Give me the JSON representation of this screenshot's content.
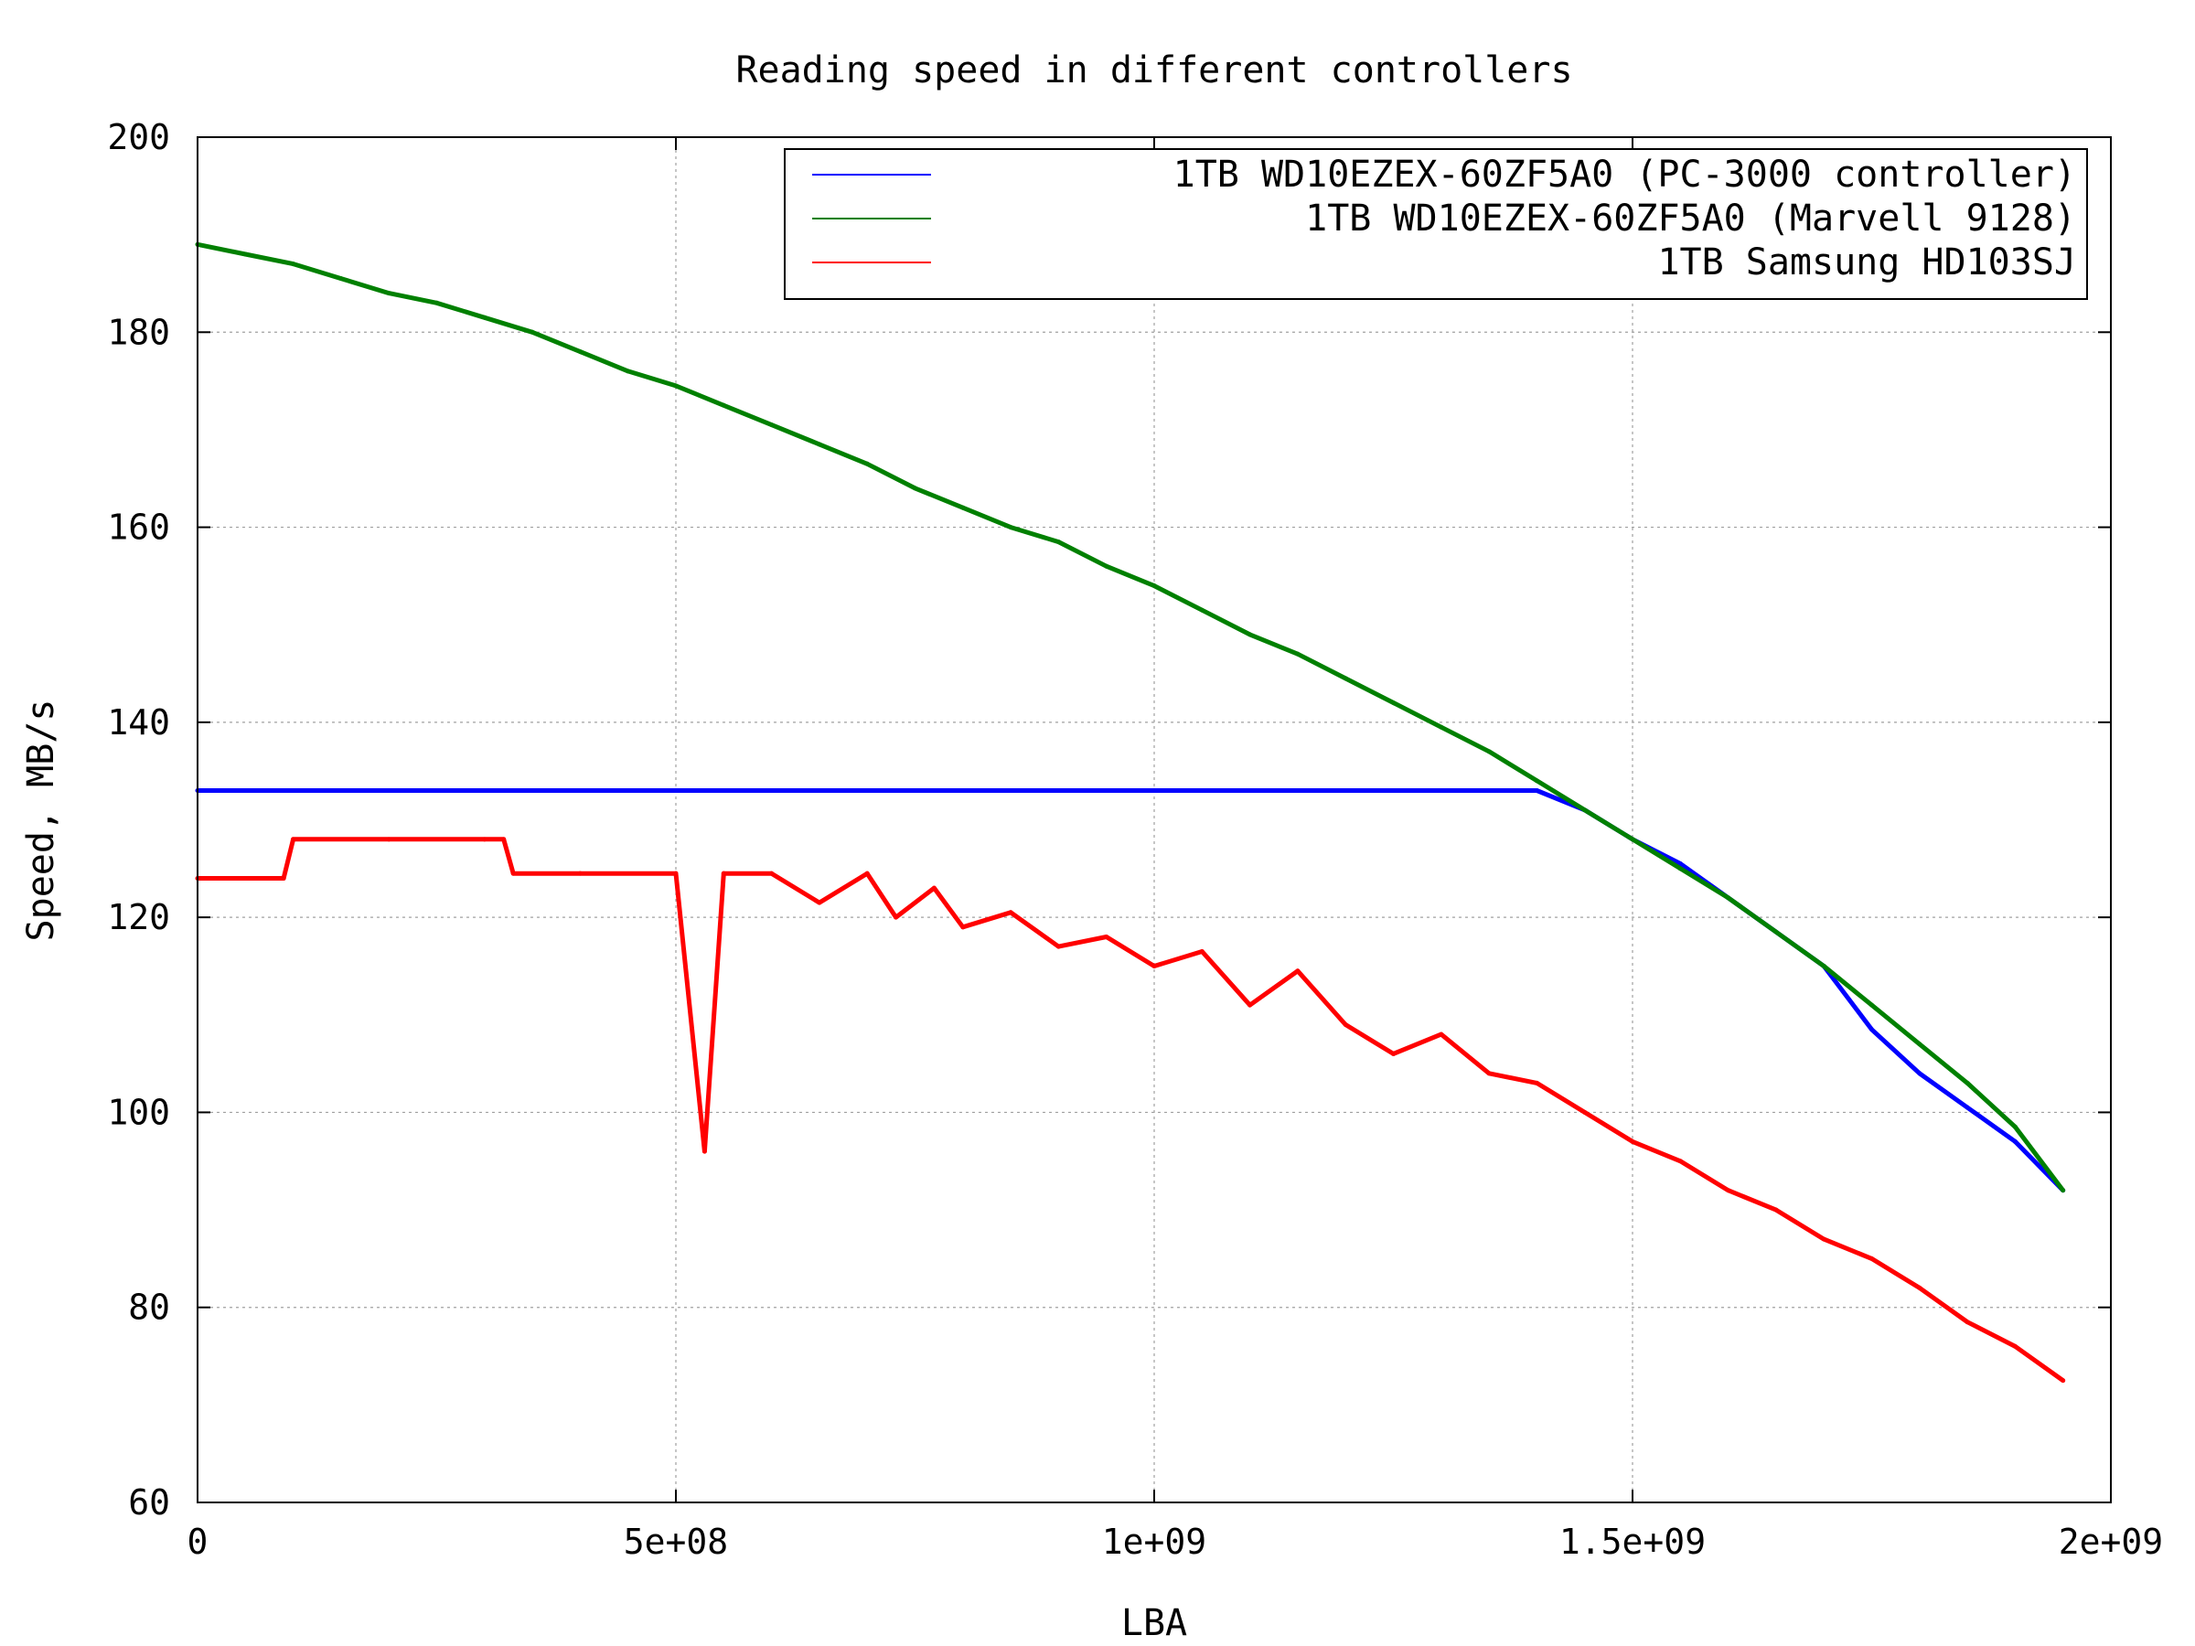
{
  "chart_data": {
    "type": "line",
    "title": "Reading speed in different controllers",
    "xlabel": "LBA",
    "ylabel": "Speed, MB/s",
    "xlim": [
      0,
      2000000000
    ],
    "ylim": [
      60,
      200
    ],
    "x_ticks": [
      0,
      500000000,
      1000000000,
      1500000000,
      2000000000
    ],
    "x_tick_labels": [
      "0",
      "5e+08",
      "1e+09",
      "1.5e+09",
      "2e+09"
    ],
    "y_ticks": [
      60,
      80,
      100,
      120,
      140,
      160,
      180,
      200
    ],
    "y_tick_labels": [
      "60",
      "80",
      "100",
      "120",
      "140",
      "160",
      "180",
      "200"
    ],
    "grid": true,
    "legend_position": "top-right",
    "series": [
      {
        "name": "1TB WD10EZEX-60ZF5A0 (PC-3000 controller)",
        "color": "#0000ff",
        "x": [
          0,
          100000000,
          200000000,
          300000000,
          400000000,
          500000000,
          600000000,
          700000000,
          800000000,
          900000000,
          1000000000,
          1100000000,
          1200000000,
          1300000000,
          1400000000,
          1450000000,
          1500000000,
          1550000000,
          1600000000,
          1650000000,
          1700000000,
          1750000000,
          1800000000,
          1850000000,
          1900000000,
          1950000000
        ],
        "y": [
          133,
          133,
          133,
          133,
          133,
          133,
          133,
          133,
          133,
          133,
          133,
          133,
          133,
          133,
          133,
          131,
          128,
          125.5,
          122,
          118.5,
          115,
          108.5,
          104,
          100.5,
          97,
          92
        ]
      },
      {
        "name": "1TB WD10EZEX-60ZF5A0 (Marvell 9128)",
        "color": "#008000",
        "x": [
          0,
          50000000,
          100000000,
          150000000,
          200000000,
          250000000,
          300000000,
          350000000,
          400000000,
          450000000,
          500000000,
          550000000,
          600000000,
          650000000,
          700000000,
          750000000,
          800000000,
          850000000,
          900000000,
          950000000,
          1000000000,
          1050000000,
          1100000000,
          1150000000,
          1200000000,
          1250000000,
          1300000000,
          1350000000,
          1400000000,
          1450000000,
          1500000000,
          1550000000,
          1600000000,
          1650000000,
          1700000000,
          1750000000,
          1800000000,
          1850000000,
          1900000000,
          1950000000
        ],
        "y": [
          189,
          188,
          187,
          185.5,
          184,
          183,
          181.5,
          180,
          178,
          176,
          174.5,
          172.5,
          170.5,
          168.5,
          166.5,
          164,
          162,
          160,
          158.5,
          156,
          154,
          151.5,
          149,
          147,
          144.5,
          142,
          139.5,
          137,
          134,
          131,
          128,
          125,
          122,
          118.5,
          115,
          111,
          107,
          103,
          98.5,
          92
        ]
      },
      {
        "name": "1TB Samsung HD103SJ",
        "color": "#ff0000",
        "x": [
          0,
          90000000,
          100000000,
          200000000,
          300000000,
          320000000,
          330000000,
          400000000,
          500000000,
          530000000,
          550000000,
          600000000,
          650000000,
          700000000,
          730000000,
          770000000,
          800000000,
          850000000,
          900000000,
          950000000,
          1000000000,
          1050000000,
          1100000000,
          1150000000,
          1200000000,
          1250000000,
          1300000000,
          1350000000,
          1400000000,
          1450000000,
          1500000000,
          1550000000,
          1600000000,
          1650000000,
          1700000000,
          1750000000,
          1800000000,
          1850000000,
          1900000000,
          1950000000
        ],
        "y": [
          124,
          124,
          128,
          128,
          128,
          128,
          124.5,
          124.5,
          124.5,
          96,
          124.5,
          124.5,
          121.5,
          124.5,
          120,
          123,
          119,
          120.5,
          117,
          118,
          115,
          116.5,
          111,
          114.5,
          109,
          106,
          108,
          104,
          103,
          100,
          97,
          95,
          92,
          90,
          87,
          85,
          82,
          78.5,
          76,
          72.5
        ]
      }
    ]
  }
}
